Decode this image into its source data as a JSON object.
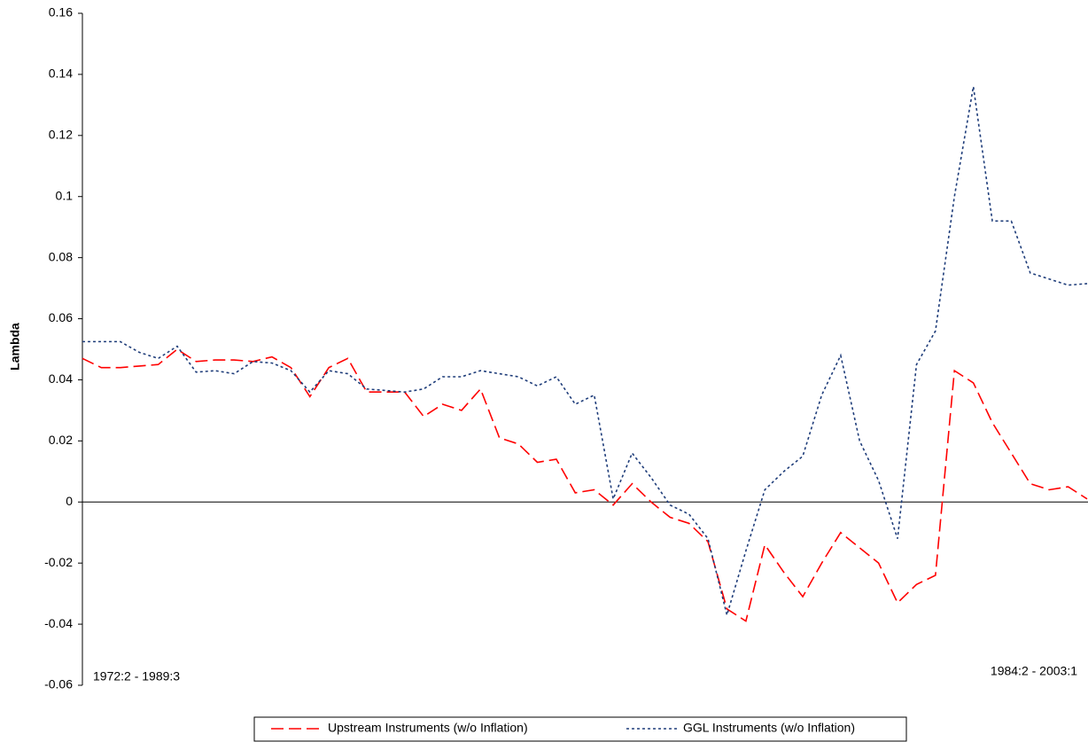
{
  "chart_data": {
    "type": "line",
    "y_label": "Lambda",
    "annotations": [
      "1972:2 - 1989:3",
      "1984:2 - 2003:1"
    ],
    "categories": [
      null,
      null,
      null,
      null,
      null,
      null,
      null,
      null,
      null,
      null,
      null,
      null,
      null,
      null,
      null,
      null,
      null,
      null,
      null,
      null,
      null,
      null,
      null,
      null,
      null,
      null,
      null,
      null,
      null,
      null,
      null,
      null,
      null,
      null,
      null,
      null,
      null,
      null,
      null,
      null,
      null,
      null,
      null,
      null,
      null,
      null,
      null,
      null,
      null,
      null,
      null,
      null,
      null,
      null
    ],
    "series": [
      {
        "name": "Upstream Instruments (w/o Inflation)",
        "color": "#ff0000",
        "dash": "dashed",
        "values": [
          0.047,
          0.044,
          0.044,
          0.0445,
          0.045,
          0.05,
          0.046,
          0.0465,
          0.0465,
          0.046,
          0.0475,
          0.044,
          0.0345,
          0.044,
          0.047,
          0.036,
          0.036,
          0.036,
          0.028,
          0.032,
          0.03,
          0.037,
          0.021,
          0.019,
          0.013,
          0.014,
          0.003,
          0.004,
          -0.001,
          0.006,
          0.0,
          -0.005,
          -0.007,
          -0.013,
          -0.035,
          -0.039,
          -0.014,
          -0.023,
          -0.031,
          -0.02,
          -0.01,
          -0.015,
          -0.02,
          -0.033,
          -0.027,
          -0.024,
          0.043,
          0.039,
          0.026,
          0.016,
          0.006,
          0.004,
          0.005,
          0.001
        ]
      },
      {
        "name": "GGL Instruments (w/o Inflation)",
        "color": "#1f3d7a",
        "dash": "dotted",
        "values": [
          0.0525,
          0.0525,
          0.0525,
          0.049,
          0.047,
          0.051,
          0.0425,
          0.043,
          0.042,
          0.046,
          0.0455,
          0.043,
          0.036,
          0.043,
          0.042,
          0.037,
          0.0365,
          0.036,
          0.037,
          0.041,
          0.041,
          0.043,
          0.042,
          0.041,
          0.038,
          0.041,
          0.032,
          0.035,
          0.001,
          0.016,
          0.008,
          -0.001,
          -0.004,
          -0.012,
          -0.037,
          -0.016,
          0.004,
          0.01,
          0.015,
          0.035,
          0.048,
          0.02,
          0.007,
          -0.012,
          0.045,
          0.056,
          0.1,
          0.136,
          0.092,
          0.092,
          0.075,
          0.073,
          0.071,
          0.0715
        ]
      }
    ],
    "ylim": [
      -0.06,
      0.16
    ],
    "yticks": [
      -0.06,
      -0.04,
      -0.02,
      0,
      0.02,
      0.04,
      0.06,
      0.08,
      0.1,
      0.12,
      0.14,
      0.16
    ],
    "grid": false,
    "legend": "bottom"
  }
}
